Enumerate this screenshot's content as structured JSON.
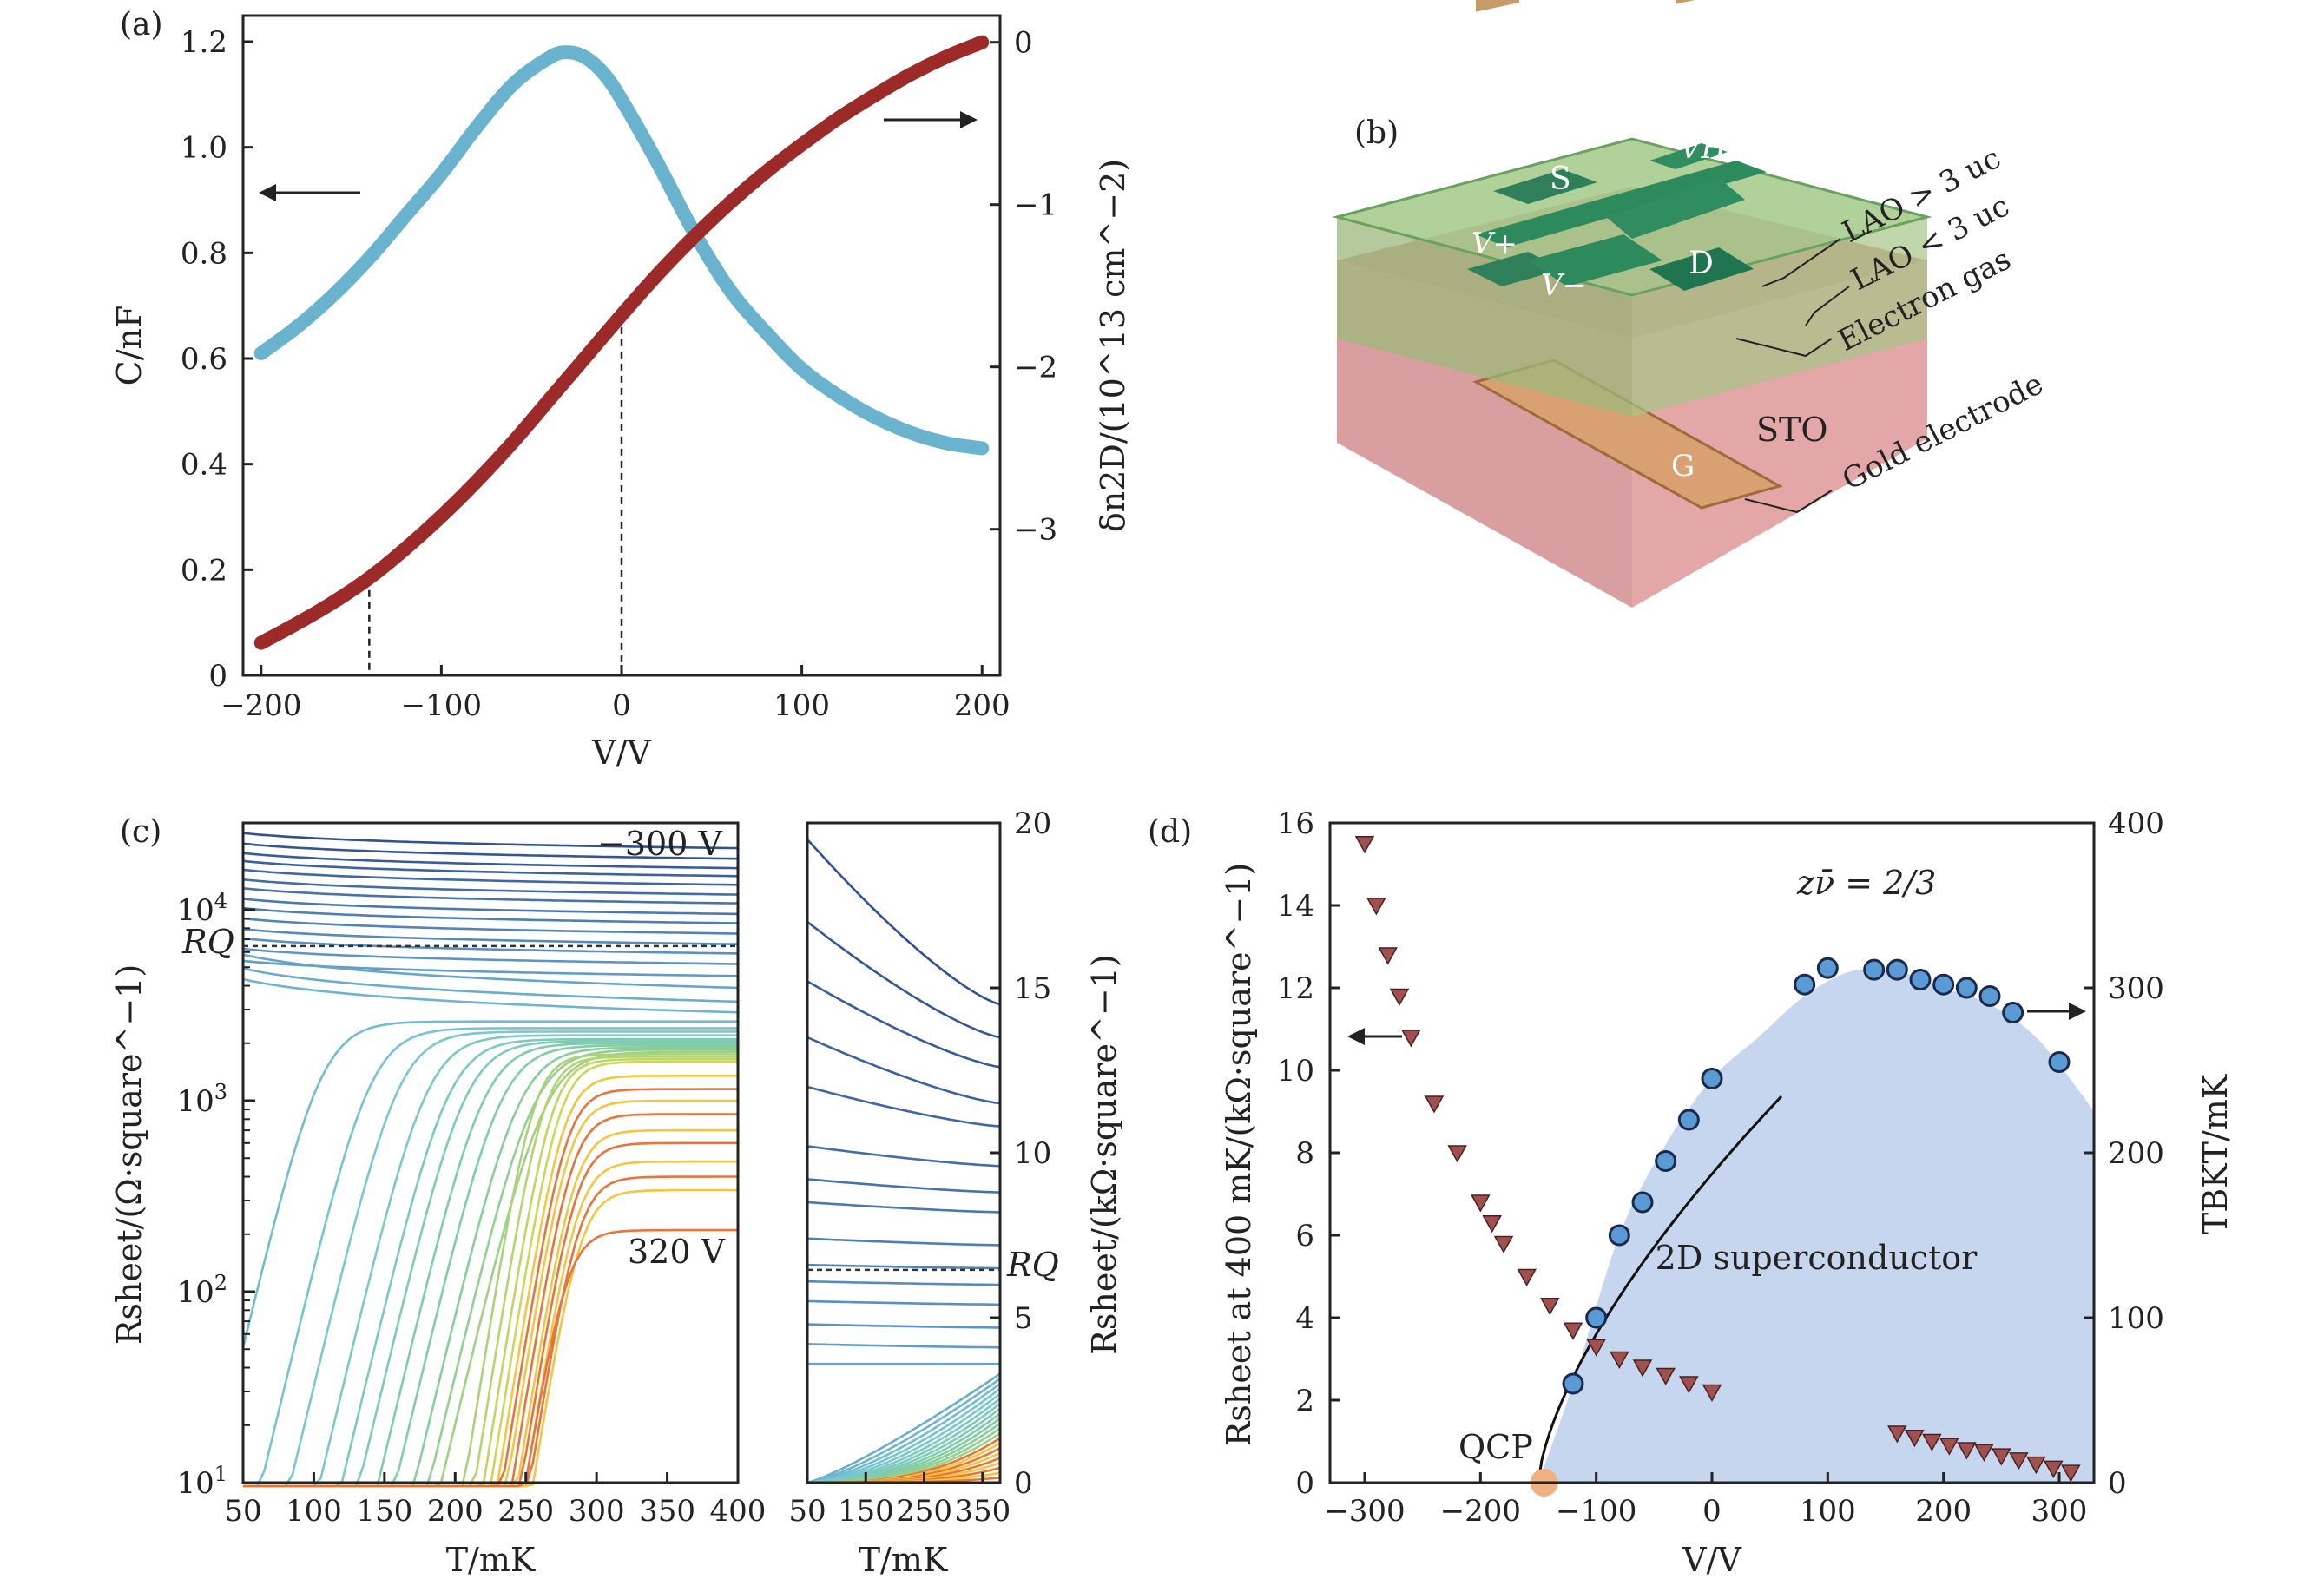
{
  "panels": {
    "a": {
      "letter": "(a)",
      "xlabel": "V/V",
      "ylabel_left": "C/nF",
      "ylabel_right": "δn2D/(10^13 cm^−2)",
      "x_ticks": [
        "−200",
        "−100",
        "0",
        "100",
        "200"
      ],
      "y_ticks_left": [
        "0",
        "0.2",
        "0.4",
        "0.6",
        "0.8",
        "1.0",
        "1.2"
      ],
      "y_ticks_right": [
        "0",
        "−1",
        "−2",
        "−3"
      ]
    },
    "b": {
      "letter": "(b)",
      "labels": {
        "S": "S",
        "VH": "VH",
        "Vplus": "V+",
        "Vminus": "V−",
        "D": "D",
        "G": "G",
        "STO": "STO",
        "lao_gt": "LAO > 3 uc",
        "lao_lt": "LAO < 3 uc",
        "electron_gas": "Electron gas",
        "gold": "Gold electrode"
      }
    },
    "c": {
      "letter": "(c)",
      "xlabel": "T/mK",
      "ylabel_left": "Rsheet/(Ω·square^−1)",
      "ylabel_right": "Rsheet/(kΩ·square^−1)",
      "x_ticks_left": [
        "50",
        "100",
        "150",
        "200",
        "250",
        "300",
        "350",
        "400"
      ],
      "x_ticks_right": [
        "50",
        "150",
        "250",
        "350"
      ],
      "y_ticks_left": [
        "10^1",
        "10^2",
        "10^3",
        "10^4"
      ],
      "y_ticks_right": [
        "0",
        "5",
        "10",
        "15",
        "20"
      ],
      "annotation_top": "−300 V",
      "annotation_bottom": "320 V",
      "rq_label": "RQ"
    },
    "d": {
      "letter": "(d)",
      "xlabel": "V/V",
      "ylabel_left": "Rsheet at 400 mK/(kΩ·square^−1)",
      "ylabel_right": "TBKT/mK",
      "x_ticks": [
        "−300",
        "−200",
        "−100",
        "0",
        "100",
        "200",
        "300"
      ],
      "y_ticks_left": [
        "0",
        "2",
        "4",
        "6",
        "8",
        "10",
        "12",
        "14",
        "16"
      ],
      "y_ticks_right": [
        "0",
        "100",
        "200",
        "300",
        "400"
      ],
      "region_label": "2D superconductor",
      "qcp_label": "QCP",
      "fit_label": "zν̄ = 2/3"
    }
  },
  "colors": {
    "capacitance": "#6ab3cf",
    "density": "#9b2a28",
    "triangles": "#a0504e",
    "circles": "#5b9bd5",
    "sc_region": "#c5d6ee",
    "qcp": "#f0b080"
  },
  "chart_data": [
    {
      "panel": "a",
      "type": "line",
      "xlabel": "V/V",
      "xlim": [
        -210,
        210
      ],
      "series": [
        {
          "axis": "left",
          "ylim": [
            0,
            1.2
          ],
          "x": [
            -200,
            -180,
            -160,
            -140,
            -120,
            -100,
            -80,
            -60,
            -40,
            -30,
            -20,
            -10,
            0,
            20,
            40,
            60,
            80,
            100,
            120,
            140,
            160,
            180,
            200
          ],
          "values": [
            0.61,
            0.66,
            0.72,
            0.79,
            0.87,
            0.95,
            1.04,
            1.12,
            1.17,
            1.18,
            1.17,
            1.14,
            1.09,
            0.97,
            0.84,
            0.73,
            0.65,
            0.58,
            0.53,
            0.49,
            0.46,
            0.44,
            0.43
          ]
        },
        {
          "axis": "right",
          "ylim": [
            -3.9,
            0.1
          ],
          "x": [
            -200,
            -180,
            -160,
            -140,
            -120,
            -100,
            -80,
            -60,
            -40,
            -20,
            0,
            20,
            40,
            60,
            80,
            100,
            120,
            140,
            160,
            180,
            200
          ],
          "values": [
            -3.7,
            -3.58,
            -3.45,
            -3.3,
            -3.12,
            -2.92,
            -2.7,
            -2.46,
            -2.2,
            -1.94,
            -1.68,
            -1.43,
            -1.2,
            -0.99,
            -0.8,
            -0.63,
            -0.47,
            -0.33,
            -0.2,
            -0.09,
            0.0
          ]
        }
      ],
      "dashed_x": [
        -140,
        0
      ]
    },
    {
      "panel": "c-left",
      "type": "line",
      "xlabel": "T/mK",
      "ylabel": "Rsheet/(Ω·square^−1)",
      "xlim": [
        50,
        400
      ],
      "ylim": [
        10,
        30000
      ],
      "scale": "log",
      "T": [
        50,
        75,
        100,
        125,
        150,
        175,
        200,
        225,
        250,
        275,
        300,
        325,
        350,
        375,
        400
      ],
      "series_start_V": -300,
      "series_end_V": 320,
      "normal_levels": [
        21000,
        18500,
        16500,
        15000,
        13500,
        12000,
        10800,
        9500,
        8500,
        7500,
        6600,
        5900,
        5200,
        4500,
        3900,
        3300,
        2900,
        2600,
        2400,
        2300,
        2200,
        2100,
        2050,
        2000,
        1950,
        1900,
        1850,
        1800,
        1750,
        1700,
        1650,
        1600,
        1350,
        1150,
        1000,
        850,
        700,
        600,
        480,
        400,
        340,
        210
      ],
      "Tc_values": [
        0,
        0,
        0,
        0,
        0,
        0,
        0,
        0,
        0,
        0,
        0,
        0,
        0,
        0,
        0,
        0,
        0,
        60,
        95,
        115,
        135,
        150,
        162,
        175,
        187,
        200,
        210,
        218,
        225,
        232,
        238,
        243,
        246,
        248,
        250,
        252,
        254,
        255,
        256,
        257,
        258,
        248
      ]
    },
    {
      "panel": "c-right",
      "type": "line",
      "xlabel": "T/mK",
      "ylabel": "Rsheet/(kΩ·square^−1)",
      "xlim": [
        50,
        380
      ],
      "ylim": [
        0,
        20
      ],
      "curves_start_end_kohm": [
        [
          19.5,
          14.5
        ],
        [
          17,
          13.5
        ],
        [
          15.2,
          12.6
        ],
        [
          13.5,
          11.5
        ],
        [
          12,
          10.8
        ],
        [
          10.2,
          9.6
        ],
        [
          9.2,
          8.8
        ],
        [
          8.5,
          8.2
        ],
        [
          7.4,
          7.2
        ],
        [
          6.6,
          6.5
        ],
        [
          6.1,
          6.0
        ],
        [
          5.5,
          5.4
        ],
        [
          4.8,
          4.7
        ],
        [
          4.2,
          4.1
        ],
        [
          3.6,
          3.6
        ]
      ]
    },
    {
      "panel": "d",
      "type": "scatter",
      "xlabel": "V/V",
      "xlim": [
        -330,
        330
      ],
      "series": [
        {
          "name": "Rsheet at 400 mK",
          "axis": "left",
          "ylim": [
            0,
            16
          ],
          "x": [
            -300,
            -290,
            -280,
            -270,
            -260,
            -240,
            -220,
            -200,
            -190,
            -180,
            -160,
            -140,
            -120,
            -100,
            -80,
            -60,
            -40,
            -20,
            0,
            160,
            175,
            190,
            205,
            220,
            235,
            250,
            265,
            280,
            295,
            310
          ],
          "values": [
            15.5,
            14.0,
            12.8,
            11.8,
            10.8,
            9.2,
            8.0,
            6.8,
            6.3,
            5.8,
            5.0,
            4.3,
            3.7,
            3.3,
            3.0,
            2.8,
            2.6,
            2.4,
            2.2,
            1.2,
            1.1,
            1.0,
            0.9,
            0.8,
            0.75,
            0.65,
            0.55,
            0.45,
            0.35,
            0.25
          ]
        },
        {
          "name": "TBKT",
          "axis": "right",
          "ylim": [
            0,
            400
          ],
          "x": [
            -120,
            -100,
            -80,
            -60,
            -40,
            -20,
            0,
            80,
            100,
            140,
            160,
            180,
            200,
            220,
            240,
            260,
            300
          ],
          "values": [
            60,
            100,
            150,
            170,
            195,
            220,
            245,
            302,
            312,
            311,
            311,
            305,
            302,
            300,
            295,
            285,
            255
          ]
        }
      ],
      "sc_dome_T": [
        [
          -150,
          0
        ],
        [
          -120,
          60
        ],
        [
          -80,
          150
        ],
        [
          -40,
          205
        ],
        [
          0,
          245
        ],
        [
          40,
          270
        ],
        [
          80,
          295
        ],
        [
          120,
          310
        ],
        [
          160,
          310
        ],
        [
          200,
          300
        ],
        [
          240,
          290
        ],
        [
          280,
          270
        ],
        [
          320,
          235
        ]
      ],
      "qcp_V": -145
    }
  ]
}
